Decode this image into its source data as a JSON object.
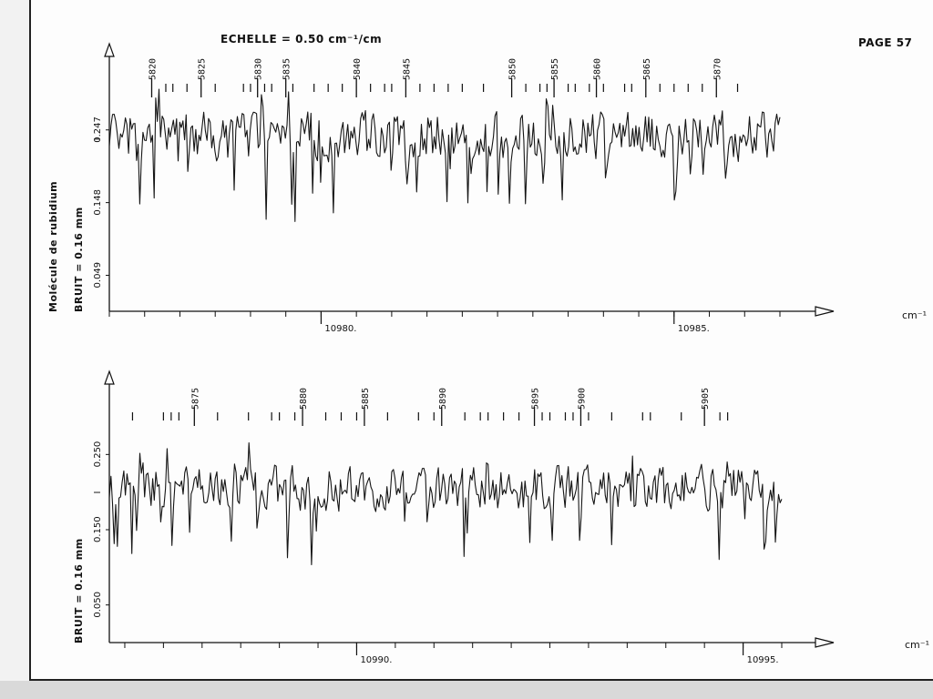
{
  "header": {
    "scale_text": "ECHELLE = 0.50 cm⁻¹/cm",
    "page_label": "PAGE 57"
  },
  "side_labels": {
    "molecule": "Molécule de rubidium",
    "noise_top": "BRUIT = 0.16 mm",
    "noise_bottom": "BRUIT = 0.16 mm"
  },
  "chart_data": [
    {
      "type": "line",
      "title": "",
      "xlabel": "cm⁻¹",
      "ylabel": "I",
      "x_range": [
        10977.0,
        10986.5
      ],
      "x_ticks": [
        10980,
        10985
      ],
      "x_tick_labels": [
        "10980.",
        "10985."
      ],
      "y_ticks": [
        0.049,
        0.148,
        0.247
      ],
      "y_tick_labels": [
        "0.049",
        "0.148",
        "0.247"
      ],
      "line_markers": [
        {
          "label": "5820",
          "x": 10977.6
        },
        {
          "label": "5825",
          "x": 10978.3
        },
        {
          "label": "5830",
          "x": 10979.1
        },
        {
          "label": "5835",
          "x": 10979.5
        },
        {
          "label": "5840",
          "x": 10980.5
        },
        {
          "label": "5845",
          "x": 10981.2
        },
        {
          "label": "5850",
          "x": 10982.7
        },
        {
          "label": "5855",
          "x": 10983.3
        },
        {
          "label": "5860",
          "x": 10983.9
        },
        {
          "label": "5865",
          "x": 10984.6
        },
        {
          "label": "5870",
          "x": 10985.6
        }
      ],
      "tick_marks_x": [
        10977.8,
        10977.9,
        10978.1,
        10978.5,
        10978.9,
        10979.0,
        10979.2,
        10979.3,
        10979.6,
        10979.9,
        10980.1,
        10980.3,
        10980.7,
        10980.9,
        10981.0,
        10981.4,
        10981.6,
        10981.8,
        10982.0,
        10982.3,
        10982.9,
        10983.1,
        10983.2,
        10983.5,
        10983.6,
        10983.8,
        10984.0,
        10984.3,
        10984.4,
        10984.8,
        10985.0,
        10985.2,
        10985.4,
        10985.9
      ],
      "spectrum_seed": 57,
      "y_mean": 0.24,
      "y_spread": 0.05,
      "n_points": 420
    },
    {
      "type": "line",
      "title": "",
      "xlabel": "cm⁻¹",
      "ylabel": "I",
      "x_range": [
        10986.8,
        10995.5
      ],
      "x_ticks": [
        10990,
        10995
      ],
      "x_tick_labels": [
        "10990.",
        "10995."
      ],
      "y_ticks": [
        0.05,
        0.15,
        0.25
      ],
      "y_tick_labels": [
        "0.050",
        "0.150",
        "0.250"
      ],
      "line_markers": [
        {
          "label": "5875",
          "x": 10987.9
        },
        {
          "label": "5880",
          "x": 10989.3
        },
        {
          "label": "5885",
          "x": 10990.1
        },
        {
          "label": "5890",
          "x": 10991.1
        },
        {
          "label": "5895",
          "x": 10992.3
        },
        {
          "label": "5900",
          "x": 10992.9
        },
        {
          "label": "5905",
          "x": 10994.5
        }
      ],
      "tick_marks_x": [
        10987.1,
        10987.5,
        10987.6,
        10987.7,
        10988.2,
        10988.6,
        10988.9,
        10989.0,
        10989.2,
        10989.6,
        10989.8,
        10990.0,
        10990.4,
        10990.8,
        10991.0,
        10991.4,
        10991.6,
        10991.7,
        10991.9,
        10992.1,
        10992.4,
        10992.5,
        10992.7,
        10992.8,
        10993.0,
        10993.3,
        10993.7,
        10993.8,
        10994.2,
        10994.7,
        10994.8
      ],
      "spectrum_seed": 113,
      "y_mean": 0.205,
      "y_spread": 0.045,
      "n_points": 420
    }
  ]
}
